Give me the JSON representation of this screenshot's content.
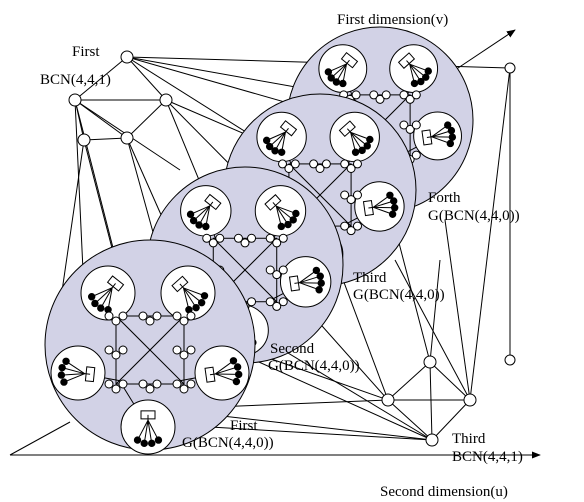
{
  "labels": {
    "axis_v": "First dimension(v)",
    "axis_u": "Second dimension(u)",
    "top_bcn_line1": "First",
    "top_bcn_line2": "BCN(4,4,1)",
    "bottom_bcn_line1": "Third",
    "bottom_bcn_line2": "BCN(4,4,1)",
    "g_first_line1": "First",
    "g_first_line2": "G(BCN(4,4,0))",
    "g_second_line1": "Second",
    "g_second_line2": "G(BCN(4,4,0))",
    "g_third_line1": "Third",
    "g_third_line2": "G(BCN(4,4,0))",
    "g_forth_line1": "Forth",
    "g_forth_line2": "G(BCN(4,4,0))"
  }
}
